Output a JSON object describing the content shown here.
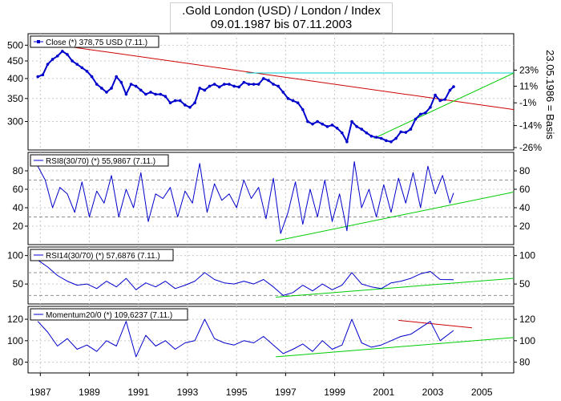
{
  "title": {
    "line1": ".Gold London (USD) / London / Index",
    "line2": "09.01.1987 bis 07.11.2003"
  },
  "x_axis": {
    "ticks": [
      "1987",
      "1989",
      "1991",
      "1993",
      "1995",
      "1997",
      "1999",
      "2001",
      "2003",
      "2005"
    ],
    "range": [
      1986.5,
      2006.3
    ]
  },
  "right_label": "23.05.1986 = Basis",
  "chart_data": [
    {
      "type": "line",
      "panel": "price",
      "legend": "Close (*) 378,75 USD (7.11.)",
      "series_color": "#0000cc",
      "y_ticks_left": [
        "500",
        "450",
        "400",
        "350",
        "300"
      ],
      "y_ticks_left_values": [
        500,
        450,
        400,
        350,
        300
      ],
      "y_ticks_right": [
        "23%",
        "11%",
        "-1%",
        "-14%",
        "-26%"
      ],
      "y_ticks_right_values": [
        423,
        380,
        340,
        292,
        252
      ],
      "ylim": [
        248,
        540
      ],
      "log_scale": true,
      "series": [
        {
          "x": [
            1986.9,
            1987.1,
            1987.3,
            1987.5,
            1987.7,
            1987.9,
            1988.1,
            1988.3,
            1988.5,
            1988.7,
            1988.9,
            1989.1,
            1989.3,
            1989.5,
            1989.7,
            1989.9,
            1990.1,
            1990.3,
            1990.5,
            1990.7,
            1990.9,
            1991.1,
            1991.3,
            1991.5,
            1991.7,
            1991.9,
            1992.1,
            1992.3,
            1992.5,
            1992.7,
            1992.9,
            1993.1,
            1993.3,
            1993.5,
            1993.7,
            1993.9,
            1994.1,
            1994.3,
            1994.5,
            1994.7,
            1994.9,
            1995.1,
            1995.3,
            1995.5,
            1995.7,
            1995.9,
            1996.1,
            1996.3,
            1996.5,
            1996.7,
            1996.9,
            1997.1,
            1997.3,
            1997.5,
            1997.7,
            1997.9,
            1998.1,
            1998.3,
            1998.5,
            1998.7,
            1998.9,
            1999.1,
            1999.3,
            1999.5,
            1999.7,
            1999.9,
            2000.1,
            2000.3,
            2000.5,
            2000.7,
            2000.9,
            2001.1,
            2001.3,
            2001.5,
            2001.7,
            2001.9,
            2002.1,
            2002.3,
            2002.5,
            2002.7,
            2002.9,
            2003.1,
            2003.3,
            2003.5,
            2003.7,
            2003.85
          ],
          "y": [
            405,
            410,
            440,
            455,
            465,
            480,
            470,
            450,
            440,
            430,
            420,
            405,
            385,
            375,
            365,
            375,
            405,
            390,
            360,
            385,
            380,
            370,
            360,
            365,
            360,
            360,
            355,
            340,
            345,
            345,
            335,
            330,
            340,
            375,
            370,
            380,
            385,
            378,
            385,
            385,
            380,
            378,
            390,
            385,
            385,
            385,
            400,
            395,
            385,
            380,
            365,
            350,
            345,
            340,
            325,
            300,
            295,
            300,
            295,
            290,
            293,
            287,
            278,
            262,
            300,
            290,
            285,
            278,
            272,
            270,
            268,
            264,
            262,
            268,
            280,
            279,
            285,
            305,
            315,
            318,
            330,
            358,
            345,
            348,
            370,
            378.75
          ]
        }
      ],
      "trendlines": [
        {
          "color": "#cc0000",
          "x": [
            1986.9,
            2006.3
          ],
          "y": [
            510,
            325
          ]
        },
        {
          "color": "#00cccc",
          "x": [
            1995.4,
            2006.3
          ],
          "y": [
            415,
            415
          ]
        },
        {
          "color": "#00cc00",
          "x": [
            2000.6,
            2006.3
          ],
          "y": [
            268,
            415
          ]
        }
      ]
    },
    {
      "type": "line",
      "panel": "rsi8",
      "legend": "RSI8(30/70) (*) 55,9867 (7.11.)",
      "series_color": "#0000cc",
      "y_ticks_left": [
        "80",
        "60",
        "40",
        "20"
      ],
      "y_ticks_left_values": [
        80,
        60,
        40,
        20
      ],
      "y_ticks_right": [
        "80",
        "60",
        "40",
        "20"
      ],
      "y_ticks_right_values": [
        80,
        60,
        40,
        20
      ],
      "ylim": [
        0,
        100
      ],
      "ref_lines": [
        30,
        70
      ],
      "series": [
        {
          "x": [
            1986.9,
            1987.2,
            1987.5,
            1987.8,
            1988.1,
            1988.4,
            1988.7,
            1989.0,
            1989.3,
            1989.6,
            1989.9,
            1990.2,
            1990.5,
            1990.8,
            1991.1,
            1991.4,
            1991.7,
            1992.0,
            1992.3,
            1992.6,
            1992.9,
            1993.2,
            1993.5,
            1993.8,
            1994.1,
            1994.4,
            1994.7,
            1995.0,
            1995.3,
            1995.6,
            1995.9,
            1996.2,
            1996.5,
            1996.8,
            1997.1,
            1997.4,
            1997.7,
            1998.0,
            1998.3,
            1998.6,
            1998.9,
            1999.2,
            1999.5,
            1999.8,
            2000.1,
            2000.4,
            2000.7,
            2001.0,
            2001.3,
            2001.6,
            2001.9,
            2002.2,
            2002.5,
            2002.8,
            2003.1,
            2003.4,
            2003.7,
            2003.85
          ],
          "y": [
            85,
            70,
            40,
            62,
            55,
            35,
            68,
            30,
            58,
            45,
            75,
            30,
            60,
            40,
            78,
            25,
            55,
            50,
            62,
            30,
            58,
            45,
            88,
            35,
            66,
            48,
            55,
            40,
            70,
            50,
            62,
            28,
            72,
            12,
            35,
            68,
            22,
            60,
            30,
            70,
            25,
            55,
            15,
            90,
            40,
            60,
            30,
            65,
            35,
            72,
            45,
            78,
            40,
            85,
            55,
            75,
            45,
            56
          ]
        }
      ],
      "trendlines": [
        {
          "color": "#00cc00",
          "x": [
            1996.6,
            2006.3
          ],
          "y": [
            4,
            57
          ]
        }
      ]
    },
    {
      "type": "line",
      "panel": "rsi14",
      "legend": "RSI14(30/70) (*) 57,6876 (7.11.)",
      "series_color": "#0000cc",
      "y_ticks_left": [
        "100",
        "50"
      ],
      "y_ticks_left_values": [
        100,
        50
      ],
      "y_ticks_right": [
        "100",
        "50"
      ],
      "y_ticks_right_values": [
        100,
        50
      ],
      "ylim": [
        15,
        115
      ],
      "ref_lines": [
        30,
        70
      ],
      "series": [
        {
          "x": [
            1986.9,
            1987.3,
            1987.7,
            1988.1,
            1988.5,
            1988.9,
            1989.3,
            1989.7,
            1990.1,
            1990.5,
            1990.9,
            1991.3,
            1991.7,
            1992.1,
            1992.5,
            1992.9,
            1993.3,
            1993.7,
            1994.1,
            1994.5,
            1994.9,
            1995.3,
            1995.7,
            1996.1,
            1996.5,
            1996.9,
            1997.3,
            1997.7,
            1998.1,
            1998.5,
            1998.9,
            1999.3,
            1999.7,
            2000.1,
            2000.5,
            2000.9,
            2001.3,
            2001.7,
            2002.1,
            2002.5,
            2002.9,
            2003.3,
            2003.85
          ],
          "y": [
            92,
            80,
            65,
            55,
            48,
            50,
            42,
            55,
            45,
            60,
            40,
            52,
            45,
            55,
            42,
            48,
            55,
            70,
            58,
            52,
            50,
            55,
            50,
            58,
            45,
            30,
            35,
            48,
            38,
            50,
            40,
            48,
            70,
            50,
            45,
            42,
            52,
            55,
            60,
            68,
            72,
            58,
            57.7
          ]
        }
      ],
      "trendlines": [
        {
          "color": "#00cc00",
          "x": [
            1996.6,
            2006.3
          ],
          "y": [
            27,
            60
          ]
        }
      ]
    },
    {
      "type": "line",
      "panel": "momentum",
      "legend": "Momentum20/0 (*) 109,6237 (7.11.)",
      "series_color": "#0000cc",
      "y_ticks_left": [
        "120",
        "100",
        "80"
      ],
      "y_ticks_left_values": [
        120,
        100,
        80
      ],
      "y_ticks_right": [
        "120",
        "100",
        "80"
      ],
      "y_ticks_right_values": [
        120,
        100,
        80
      ],
      "ylim": [
        70,
        132
      ],
      "series": [
        {
          "x": [
            1986.9,
            1987.3,
            1987.7,
            1988.1,
            1988.5,
            1988.9,
            1989.3,
            1989.7,
            1990.1,
            1990.5,
            1990.9,
            1991.3,
            1991.7,
            1992.1,
            1992.5,
            1992.9,
            1993.3,
            1993.7,
            1994.1,
            1994.5,
            1994.9,
            1995.3,
            1995.7,
            1996.1,
            1996.5,
            1996.9,
            1997.3,
            1997.7,
            1998.1,
            1998.5,
            1998.9,
            1999.3,
            1999.7,
            2000.1,
            2000.5,
            2000.9,
            2001.3,
            2001.7,
            2002.1,
            2002.5,
            2002.9,
            2003.3,
            2003.85
          ],
          "y": [
            118,
            108,
            95,
            102,
            92,
            96,
            90,
            100,
            95,
            118,
            85,
            105,
            95,
            100,
            92,
            98,
            100,
            120,
            102,
            98,
            96,
            100,
            98,
            104,
            96,
            88,
            92,
            97,
            90,
            100,
            92,
            96,
            120,
            98,
            94,
            96,
            100,
            104,
            106,
            112,
            118,
            100,
            109.6
          ]
        }
      ],
      "trendlines": [
        {
          "color": "#00cc00",
          "x": [
            1996.6,
            2006.3
          ],
          "y": [
            85,
            103
          ]
        },
        {
          "color": "#cc0000",
          "x": [
            2001.6,
            2004.6
          ],
          "y": [
            119,
            112
          ]
        }
      ]
    }
  ]
}
